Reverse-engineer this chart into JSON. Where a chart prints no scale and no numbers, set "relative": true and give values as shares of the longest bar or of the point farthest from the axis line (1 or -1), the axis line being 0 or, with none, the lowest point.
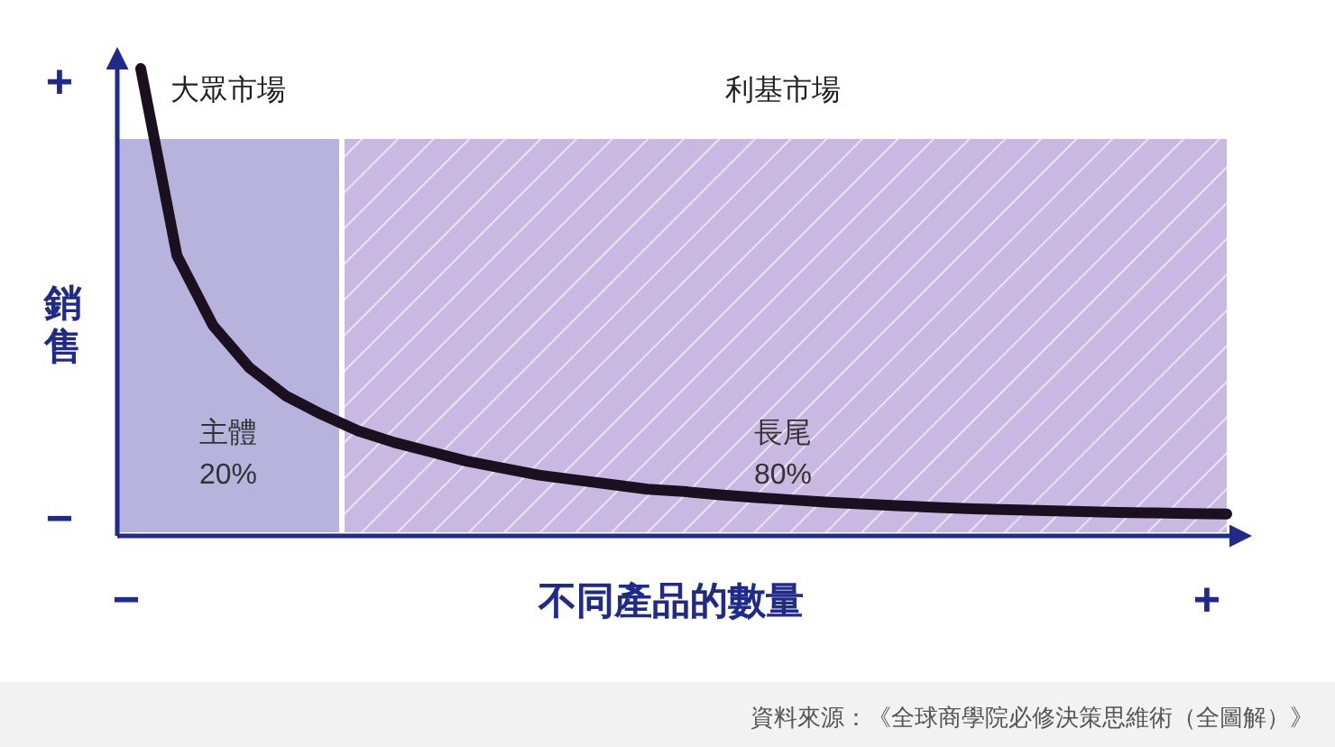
{
  "chart_data": {
    "type": "line",
    "relative": true,
    "xlabel": "不同產品的數量",
    "ylabel": "銷售",
    "categories": [
      null,
      null,
      null,
      null,
      null,
      null,
      null,
      null,
      null,
      null,
      null,
      null,
      null,
      null,
      null,
      null,
      null,
      null,
      null,
      null,
      null,
      null,
      null,
      null,
      null,
      null,
      null,
      null,
      null,
      null,
      null
    ],
    "series": [
      {
        "color": "#1a1020",
        "values": [
          1.0,
          0.6,
          0.45,
          0.36,
          0.3,
          0.26,
          0.225,
          0.2,
          0.18,
          0.16,
          0.145,
          0.13,
          0.12,
          0.11,
          0.1,
          0.095,
          0.088,
          0.082,
          0.077,
          0.072,
          0.068,
          0.064,
          0.061,
          0.058,
          0.056,
          0.054,
          0.052,
          0.05,
          0.049,
          0.048,
          0.047
        ]
      }
    ],
    "annotations": [
      "+",
      "−",
      "−",
      "+",
      "主體\n20%",
      "長尾\n80%",
      "資料來源：《全球商學院必修決策思維術（全圖解）》",
      "大眾市場",
      "利基市場"
    ]
  }
}
